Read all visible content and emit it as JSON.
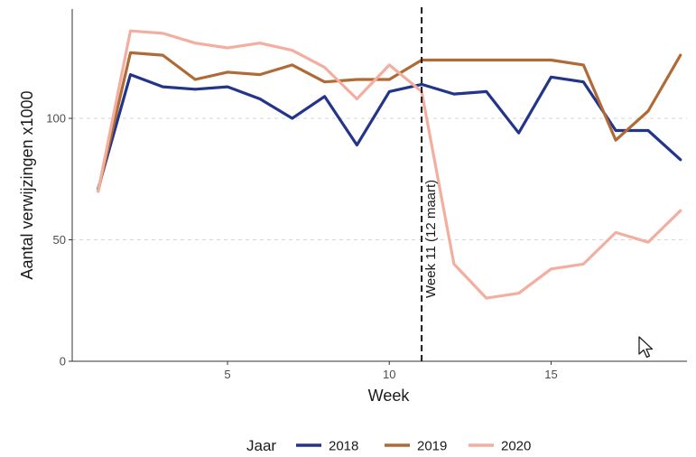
{
  "chart_data": {
    "type": "line",
    "xlabel": "Week",
    "ylabel": "Aantal verwijzingen x1000",
    "xlim": [
      0.2,
      19.2
    ],
    "ylim": [
      0,
      145
    ],
    "x_ticks": [
      5,
      10,
      15
    ],
    "y_ticks": [
      0,
      50,
      100
    ],
    "grid": "horizontal dashed at major y ticks",
    "x": [
      1,
      2,
      3,
      4,
      5,
      6,
      7,
      8,
      9,
      10,
      11,
      12,
      13,
      14,
      15,
      16,
      17,
      18,
      19
    ],
    "series": [
      {
        "name": "2018",
        "color": "#23358a",
        "values": [
          71,
          118,
          113,
          112,
          113,
          108,
          100,
          109,
          89,
          111,
          114,
          110,
          111,
          94,
          117,
          115,
          95,
          95,
          83
        ]
      },
      {
        "name": "2019",
        "color": "#b06a35",
        "values": [
          70,
          127,
          126,
          116,
          119,
          118,
          122,
          115,
          116,
          116,
          124,
          124,
          124,
          124,
          124,
          122,
          91,
          103,
          126
        ]
      },
      {
        "name": "2020",
        "color": "#f4aea0",
        "values": [
          70,
          136,
          135,
          131,
          129,
          131,
          128,
          121,
          108,
          122,
          111,
          40,
          26,
          28,
          38,
          40,
          53,
          49,
          62
        ]
      }
    ],
    "vline": {
      "x": 11,
      "label": "Week 11 (12 maart)"
    },
    "legend": {
      "title": "Jaar",
      "position": "bottom",
      "labels": [
        "2018",
        "2019",
        "2020"
      ]
    }
  },
  "cursor_icon": "mouse-pointer-icon"
}
